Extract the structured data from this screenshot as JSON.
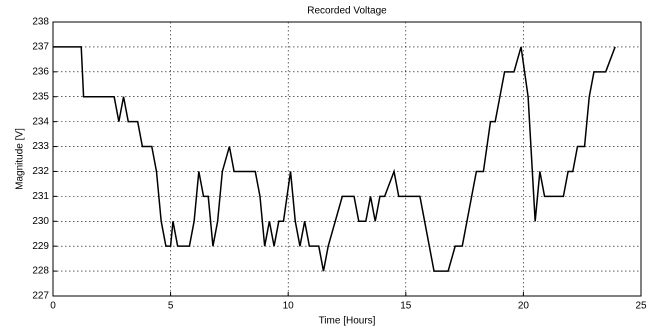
{
  "chart_data": {
    "type": "line",
    "title": "Recorded Voltage",
    "xlabel": "Time [Hours]",
    "ylabel": "Magnitude [V]",
    "x": [
      0,
      1.2,
      1.3,
      2.6,
      2.8,
      3.0,
      3.2,
      3.6,
      3.8,
      4.2,
      4.4,
      4.6,
      4.8,
      5.0,
      5.1,
      5.3,
      5.8,
      6.0,
      6.2,
      6.4,
      6.6,
      6.8,
      7.0,
      7.2,
      7.5,
      7.7,
      8.6,
      8.8,
      9.0,
      9.2,
      9.4,
      9.6,
      9.8,
      10.1,
      10.3,
      10.5,
      10.7,
      10.9,
      11.3,
      11.5,
      11.7,
      12.0,
      12.3,
      12.8,
      13.0,
      13.3,
      13.5,
      13.7,
      13.9,
      14.1,
      14.5,
      14.7,
      15.2,
      15.6,
      16.0,
      16.2,
      16.8,
      17.1,
      17.4,
      17.6,
      17.8,
      18.0,
      18.3,
      18.6,
      18.8,
      19.0,
      19.2,
      19.6,
      19.9,
      20.2,
      20.5,
      20.7,
      20.9,
      21.7,
      21.9,
      22.1,
      22.3,
      22.6,
      22.8,
      23.0,
      23.5,
      23.9
    ],
    "series": [
      {
        "color": "#000000",
        "values": [
          237,
          237,
          235,
          235,
          234,
          235,
          234,
          234,
          233,
          233,
          232,
          230,
          229,
          229,
          230,
          229,
          229,
          230,
          232,
          231,
          231,
          229,
          230,
          232,
          233,
          232,
          232,
          231,
          229,
          230,
          229,
          230,
          230,
          232,
          230,
          229,
          230,
          229,
          229,
          228,
          229,
          230,
          231,
          231,
          230,
          230,
          231,
          230,
          231,
          231,
          232,
          231,
          231,
          231,
          229,
          228,
          228,
          229,
          229,
          230,
          231,
          232,
          232,
          234,
          234,
          235,
          236,
          236,
          237,
          235,
          230,
          232,
          231,
          231,
          232,
          232,
          233,
          233,
          235,
          236,
          236,
          237
        ]
      }
    ],
    "xlim": [
      0,
      25
    ],
    "xticks": [
      0,
      5,
      10,
      15,
      20,
      25
    ],
    "ylim": [
      227,
      238
    ],
    "yticks": [
      227,
      228,
      229,
      230,
      231,
      232,
      233,
      234,
      235,
      236,
      237,
      238
    ],
    "grid": true
  }
}
